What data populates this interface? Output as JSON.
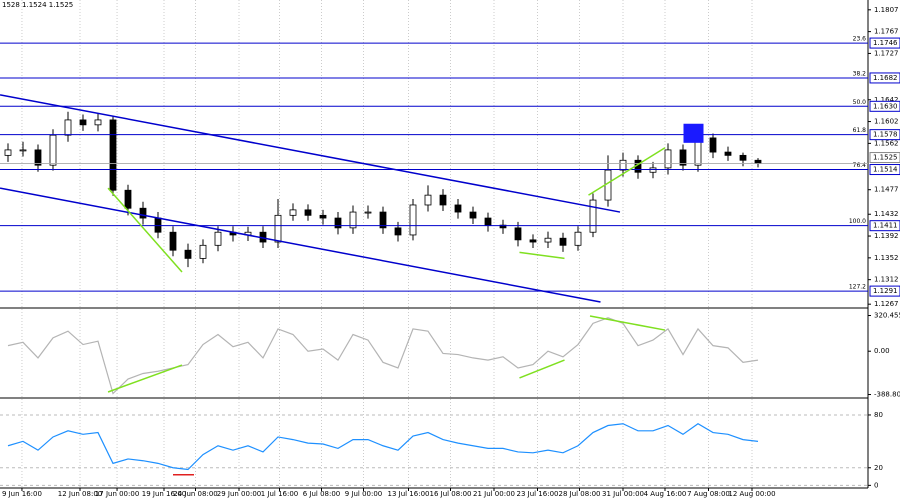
{
  "header": "1528 1.1524 1.1525",
  "chart_data": [
    {
      "type": "candlestick",
      "open": [
        1.154,
        1.155,
        1.155,
        1.1522,
        1.1577,
        1.1605,
        1.1596,
        1.1605,
        1.1476,
        1.1443,
        1.1425,
        1.1399,
        1.1366,
        1.1351,
        1.1375,
        1.1399,
        1.1394,
        1.1399,
        1.1381,
        1.143,
        1.144,
        1.143,
        1.1425,
        1.1407,
        1.1436,
        1.1436,
        1.1407,
        1.1394,
        1.1449,
        1.1467,
        1.1449,
        1.1436,
        1.1425,
        1.1412,
        1.1407,
        1.1385,
        1.1381,
        1.1388,
        1.1375,
        1.1399,
        1.1458,
        1.1513,
        1.1531,
        1.1509,
        1.1517,
        1.155,
        1.1522,
        1.1572,
        1.1546,
        1.154,
        1.1531
      ],
      "high": [
        1.1562,
        1.1565,
        1.156,
        1.1588,
        1.162,
        1.1615,
        1.1617,
        1.1612,
        1.1486,
        1.1455,
        1.1436,
        1.141,
        1.1378,
        1.1386,
        1.141,
        1.141,
        1.1409,
        1.141,
        1.146,
        1.1452,
        1.145,
        1.144,
        1.1436,
        1.1448,
        1.1448,
        1.1446,
        1.1418,
        1.146,
        1.1485,
        1.1478,
        1.146,
        1.1446,
        1.1435,
        1.1422,
        1.1418,
        1.1395,
        1.14,
        1.1398,
        1.141,
        1.147,
        1.154,
        1.1545,
        1.154,
        1.1528,
        1.1562,
        1.156,
        1.1592,
        1.158,
        1.1556,
        1.1545,
        1.1535
      ],
      "low": [
        1.1528,
        1.1538,
        1.151,
        1.1512,
        1.1565,
        1.1585,
        1.1584,
        1.1466,
        1.143,
        1.1413,
        1.1388,
        1.1355,
        1.1335,
        1.1342,
        1.1364,
        1.1382,
        1.1383,
        1.137,
        1.137,
        1.142,
        1.142,
        1.1413,
        1.1395,
        1.1396,
        1.1424,
        1.1396,
        1.1382,
        1.1384,
        1.1437,
        1.1438,
        1.1424,
        1.1414,
        1.14,
        1.1396,
        1.1373,
        1.137,
        1.137,
        1.1363,
        1.1365,
        1.139,
        1.1446,
        1.1501,
        1.1497,
        1.1498,
        1.1505,
        1.1512,
        1.151,
        1.1535,
        1.153,
        1.152,
        1.1518
      ],
      "close": [
        1.155,
        1.155,
        1.1522,
        1.1577,
        1.1605,
        1.1596,
        1.1605,
        1.1476,
        1.1443,
        1.1425,
        1.1399,
        1.1366,
        1.1351,
        1.1375,
        1.1399,
        1.1394,
        1.1399,
        1.1381,
        1.143,
        1.144,
        1.143,
        1.1425,
        1.1407,
        1.1436,
        1.1436,
        1.1407,
        1.1394,
        1.1449,
        1.1467,
        1.1449,
        1.1436,
        1.1425,
        1.1412,
        1.1407,
        1.1385,
        1.1381,
        1.1388,
        1.1375,
        1.1399,
        1.1458,
        1.1513,
        1.1531,
        1.1509,
        1.1517,
        1.155,
        1.1522,
        1.1572,
        1.1546,
        1.154,
        1.1531,
        1.1525
      ],
      "ylim": [
        1.126,
        1.1825
      ],
      "yticks": [
        1.1807,
        1.1767,
        1.1727,
        1.1642,
        1.1602,
        1.1562,
        1.1477,
        1.1432,
        1.1392,
        1.1352,
        1.1312,
        1.1267
      ],
      "levels": [
        {
          "ratio": "23.6",
          "price": 1.1746
        },
        {
          "ratio": "38.2",
          "price": 1.1682
        },
        {
          "ratio": "50.0",
          "price": {
            "value": 1.163,
            "label": "1.1630"
          }
        },
        {
          "ratio": "61.8",
          "price": 1.1578
        },
        {
          "ratio": "76.4",
          "price": 1.1514
        },
        {
          "ratio": "100.0",
          "price": 1.1411
        },
        {
          "ratio": "127.2",
          "price": 1.1291
        }
      ],
      "level_color": "#0000cc",
      "current": 1.1525,
      "trendlines": [
        {
          "color": "#0000cc",
          "points": [
            [
              -0.53,
              1.1651
            ],
            [
              40.8,
              1.1436
            ]
          ]
        },
        {
          "color": "#0000cc",
          "points": [
            [
              -0.53,
              1.148
            ],
            [
              39.5,
              1.1271
            ]
          ]
        },
        {
          "color": "#7fe020",
          "points": [
            [
              6.67,
              1.148
            ],
            [
              11.6,
              1.1326
            ]
          ]
        },
        {
          "color": "#7fe020",
          "points": [
            [
              34.1,
              1.1362
            ],
            [
              37.1,
              1.1351
            ]
          ]
        },
        {
          "color": "#7fe020",
          "points": [
            [
              38.7,
              1.1467
            ],
            [
              43.8,
              1.1554
            ]
          ]
        }
      ],
      "highlight": {
        "x": 45.7,
        "high": 1.1598,
        "low": 1.1563,
        "color": "#1a1aff"
      }
    },
    {
      "type": "line",
      "color": "#b4b4b4",
      "values": [
        50,
        80,
        -60,
        120,
        180,
        60,
        90,
        -380,
        -250,
        -200,
        -180,
        -150,
        -120,
        60,
        150,
        40,
        80,
        -60,
        200,
        150,
        0,
        20,
        -80,
        150,
        100,
        -100,
        -150,
        200,
        180,
        -20,
        -30,
        -60,
        -80,
        -50,
        -150,
        -120,
        0,
        -50,
        60,
        250,
        300,
        250,
        50,
        100,
        200,
        -30,
        200,
        50,
        30,
        -100,
        -80
      ],
      "ylim": [
        -420,
        370
      ],
      "yticks": [
        320.4558,
        {
          "value": 0,
          "label": "0.00"
        },
        -388.803
      ],
      "grid": false,
      "trendlines": [
        {
          "color": "#7fe020",
          "points": [
            [
              6.67,
              -366
            ],
            [
              11.6,
              -124
            ]
          ]
        },
        {
          "color": "#7fe020",
          "points": [
            [
              34.1,
              -240
            ],
            [
              37.1,
              -79
            ]
          ]
        },
        {
          "color": "#7fe020",
          "points": [
            [
              38.8,
              316
            ],
            [
              43.8,
              190
            ]
          ]
        }
      ]
    },
    {
      "type": "line",
      "color": "#1e90ff",
      "values": [
        45,
        50,
        40,
        55,
        62,
        58,
        60,
        25,
        30,
        28,
        25,
        20,
        18,
        35,
        45,
        40,
        45,
        38,
        55,
        52,
        48,
        47,
        42,
        52,
        52,
        45,
        40,
        56,
        60,
        52,
        48,
        45,
        42,
        42,
        38,
        37,
        40,
        37,
        45,
        60,
        68,
        70,
        62,
        62,
        68,
        58,
        70,
        60,
        58,
        52,
        50
      ],
      "ylim": [
        -3,
        97
      ],
      "yticks": [
        80,
        20,
        0
      ],
      "grid": true,
      "trendlines": [
        {
          "color": "#e02020",
          "points": [
            [
              11,
              12
            ],
            [
              12.4,
              12
            ]
          ]
        }
      ],
      "xticks": [
        {
          "value": 0.93,
          "label": "9 Jun 16:00"
        },
        {
          "value": 4.8,
          "label": "12 Jun 08:00"
        },
        {
          "value": 7.27,
          "label": "17 Jun 00:00"
        },
        {
          "value": 10.4,
          "label": "19 Jun 16:00"
        },
        {
          "value": 12.5,
          "label": "24 Jun 08:00"
        },
        {
          "value": 15.4,
          "label": "29 Jun 00:00"
        },
        {
          "value": 18.1,
          "label": "1 Jul 16:00"
        },
        {
          "value": 20.9,
          "label": "6 Jul 08:00"
        },
        {
          "value": 23.7,
          "label": "9 Jul 00:00"
        },
        {
          "value": 26.7,
          "label": "13 Jul 16:00"
        },
        {
          "value": 29.5,
          "label": "16 Jul 08:00"
        },
        {
          "value": 32.4,
          "label": "21 Jul 00:00"
        },
        {
          "value": 35.3,
          "label": "23 Jul 16:00"
        },
        {
          "value": 38.1,
          "label": "28 Jul 08:00"
        },
        {
          "value": 41,
          "label": "31 Jul 00:00"
        },
        {
          "value": 43.8,
          "label": "4 Aug 16:00"
        },
        {
          "value": 46.7,
          "label": "7 Aug 08:00"
        },
        {
          "value": 49.6,
          "label": "12 Aug 00:00"
        }
      ]
    }
  ]
}
